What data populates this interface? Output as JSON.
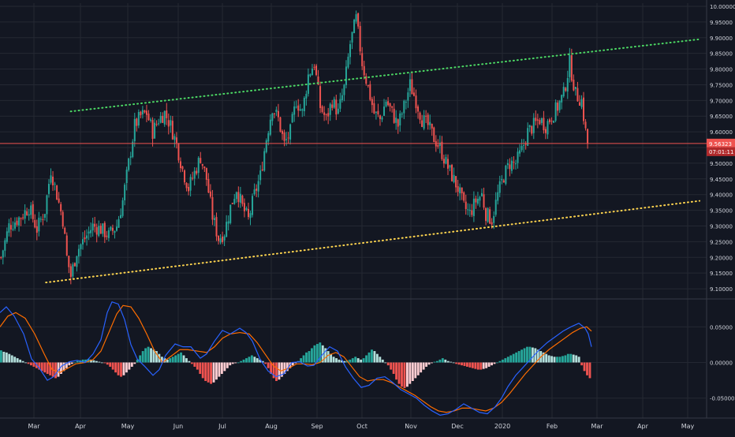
{
  "colors": {
    "background": "#131722",
    "grid": "#242833",
    "axis_text": "#d1d4dc",
    "up": "#26a69a",
    "down": "#ef5350",
    "upper_trendline": "#4cd964",
    "lower_trendline": "#ffd54f",
    "price_line": "#ef5350",
    "macd_line": "#2962ff",
    "signal_line": "#ff6d00",
    "hist_up_strong": "#26a69a",
    "hist_up_weak": "#b2dfdb",
    "hist_down_strong": "#ef5350",
    "hist_down_weak": "#ffcdd2"
  },
  "chart_data": [
    {
      "type": "candlestick",
      "pane": "price",
      "y_ticks": [
        "10.00000",
        "9.95000",
        "9.90000",
        "9.85000",
        "9.80000",
        "9.75000",
        "9.70000",
        "9.65000",
        "9.60000",
        "9.55000",
        "9.50000",
        "9.45000",
        "9.40000",
        "9.35000",
        "9.30000",
        "9.25000",
        "9.20000",
        "9.15000",
        "9.10000"
      ],
      "ylim": [
        9.07,
        10.01
      ],
      "x_month_labels": [
        "Mar",
        "Apr",
        "May",
        "Jun",
        "Jul",
        "Aug",
        "Sep",
        "Oct",
        "Nov",
        "Dec",
        "2020",
        "Feb",
        "Mar",
        "Apr",
        "May"
      ],
      "last_price_label": "9.56323",
      "countdown_label": "07:01:11",
      "last_price": 9.563,
      "anchors_time_price": [
        [
          0,
          9.2
        ],
        [
          4,
          9.3
        ],
        [
          10,
          9.33
        ],
        [
          14,
          9.36
        ],
        [
          18,
          9.29
        ],
        [
          22,
          9.35
        ],
        [
          25,
          9.48
        ],
        [
          28,
          9.4
        ],
        [
          31,
          9.32
        ],
        [
          33,
          9.2
        ],
        [
          35,
          9.14
        ],
        [
          38,
          9.22
        ],
        [
          42,
          9.26
        ],
        [
          46,
          9.3
        ],
        [
          50,
          9.29
        ],
        [
          54,
          9.27
        ],
        [
          58,
          9.3
        ],
        [
          61,
          9.38
        ],
        [
          64,
          9.5
        ],
        [
          67,
          9.62
        ],
        [
          70,
          9.65
        ],
        [
          73,
          9.66
        ],
        [
          76,
          9.6
        ],
        [
          79,
          9.64
        ],
        [
          82,
          9.66
        ],
        [
          85,
          9.62
        ],
        [
          88,
          9.56
        ],
        [
          91,
          9.48
        ],
        [
          94,
          9.42
        ],
        [
          97,
          9.47
        ],
        [
          100,
          9.52
        ],
        [
          103,
          9.45
        ],
        [
          106,
          9.33
        ],
        [
          109,
          9.26
        ],
        [
          112,
          9.28
        ],
        [
          115,
          9.36
        ],
        [
          118,
          9.42
        ],
        [
          121,
          9.36
        ],
        [
          124,
          9.32
        ],
        [
          127,
          9.4
        ],
        [
          130,
          9.46
        ],
        [
          133,
          9.58
        ],
        [
          136,
          9.68
        ],
        [
          139,
          9.64
        ],
        [
          142,
          9.56
        ],
        [
          145,
          9.6
        ],
        [
          148,
          9.7
        ],
        [
          151,
          9.66
        ],
        [
          154,
          9.78
        ],
        [
          157,
          9.82
        ],
        [
          160,
          9.68
        ],
        [
          163,
          9.64
        ],
        [
          166,
          9.7
        ],
        [
          169,
          9.66
        ],
        [
          172,
          9.74
        ],
        [
          175,
          9.88
        ],
        [
          178,
          9.96
        ],
        [
          181,
          9.82
        ],
        [
          184,
          9.74
        ],
        [
          187,
          9.66
        ],
        [
          190,
          9.64
        ],
        [
          193,
          9.7
        ],
        [
          196,
          9.66
        ],
        [
          199,
          9.62
        ],
        [
          202,
          9.68
        ],
        [
          205,
          9.75
        ],
        [
          208,
          9.7
        ],
        [
          211,
          9.64
        ],
        [
          214,
          9.62
        ],
        [
          217,
          9.58
        ],
        [
          220,
          9.55
        ],
        [
          223,
          9.5
        ],
        [
          226,
          9.46
        ],
        [
          229,
          9.42
        ],
        [
          232,
          9.36
        ],
        [
          235,
          9.34
        ],
        [
          238,
          9.38
        ],
        [
          241,
          9.4
        ],
        [
          243,
          9.34
        ],
        [
          246,
          9.32
        ],
        [
          249,
          9.4
        ],
        [
          252,
          9.46
        ],
        [
          255,
          9.5
        ],
        [
          258,
          9.5
        ],
        [
          261,
          9.54
        ],
        [
          264,
          9.6
        ],
        [
          267,
          9.62
        ],
        [
          270,
          9.64
        ],
        [
          273,
          9.62
        ],
        [
          276,
          9.65
        ],
        [
          279,
          9.68
        ],
        [
          282,
          9.72
        ],
        [
          285,
          9.82
        ],
        [
          288,
          9.72
        ],
        [
          291,
          9.7
        ],
        [
          293,
          9.6
        ],
        [
          294,
          9.56
        ]
      ],
      "upper_trendline": [
        [
          9.665,
          0.1
        ],
        [
          9.895,
          0.99
        ]
      ],
      "lower_trendline": [
        [
          9.12,
          0.065
        ],
        [
          9.38,
          0.99
        ]
      ]
    },
    {
      "type": "macd",
      "pane": "indicator",
      "y_ticks": [
        "0.05000",
        "0.00000",
        "-0.05000"
      ],
      "ylim": [
        -0.078,
        0.088
      ],
      "histogram": [
        0.017,
        0.015,
        0.014,
        0.012,
        0.01,
        0.008,
        0.006,
        0.004,
        0.002,
        0,
        -0.002,
        -0.004,
        -0.006,
        -0.008,
        -0.01,
        -0.012,
        -0.014,
        -0.016,
        -0.018,
        -0.02,
        -0.022,
        -0.02,
        -0.016,
        -0.012,
        -0.008,
        -0.004,
        -0.002,
        0,
        0.002,
        0.003,
        0.004,
        0.004,
        0.005,
        0.004,
        0.003,
        0.002,
        0.001,
        0,
        -0.001,
        -0.003,
        -0.006,
        -0.01,
        -0.014,
        -0.018,
        -0.02,
        -0.018,
        -0.014,
        -0.01,
        -0.006,
        -0.002,
        0.004,
        0.01,
        0.016,
        0.02,
        0.022,
        0.02,
        0.018,
        0.016,
        0.012,
        0.008,
        0.006,
        0.004,
        0.006,
        0.008,
        0.01,
        0.012,
        0.014,
        0.01,
        0.006,
        0.002,
        -0.002,
        -0.006,
        -0.01,
        -0.016,
        -0.022,
        -0.026,
        -0.028,
        -0.03,
        -0.028,
        -0.024,
        -0.02,
        -0.016,
        -0.012,
        -0.008,
        -0.004,
        -0.002,
        -0.001,
        0,
        0.002,
        0.004,
        0.006,
        0.008,
        0.01,
        0.008,
        0.006,
        0.004,
        0.002,
        -0.002,
        -0.008,
        -0.016,
        -0.022,
        -0.026,
        -0.024,
        -0.02,
        -0.016,
        -0.012,
        -0.008,
        -0.004,
        -0.001,
        0.002,
        0.006,
        0.01,
        0.014,
        0.016,
        0.02,
        0.024,
        0.026,
        0.028,
        0.024,
        0.02,
        0.016,
        0.012,
        0.008,
        0.006,
        0.004,
        0.003,
        0.002,
        0.003,
        0.004,
        0.006,
        0.008,
        0.006,
        0.004,
        0.006,
        0.01,
        0.014,
        0.018,
        0.016,
        0.012,
        0.008,
        0.004,
        0,
        -0.004,
        -0.01,
        -0.016,
        -0.024,
        -0.03,
        -0.034,
        -0.036,
        -0.034,
        -0.03,
        -0.026,
        -0.022,
        -0.018,
        -0.014,
        -0.01,
        -0.006,
        -0.003,
        -0.001,
        0.001,
        0.002,
        0.004,
        0.006,
        0.004,
        0.002,
        0.001,
        0,
        -0.002,
        -0.003,
        -0.004,
        -0.005,
        -0.006,
        -0.007,
        -0.008,
        -0.009,
        -0.01,
        -0.01,
        -0.009,
        -0.008,
        -0.006,
        -0.004,
        -0.002,
        0,
        0.002,
        0.004,
        0.006,
        0.008,
        0.01,
        0.012,
        0.014,
        0.016,
        0.018,
        0.02,
        0.022,
        0.022,
        0.021,
        0.02,
        0.018,
        0.016,
        0.014,
        0.012,
        0.01,
        0.009,
        0.008,
        0.008,
        0.008,
        0.009,
        0.01,
        0.012,
        0.012,
        0.011,
        0.01,
        0.008,
        -0.004,
        -0.012,
        -0.018,
        -0.022
      ],
      "macd_line": [
        [
          0,
          0.07
        ],
        [
          8,
          0.078
        ],
        [
          18,
          0.065
        ],
        [
          30,
          0.04
        ],
        [
          40,
          0.005
        ],
        [
          50,
          -0.008
        ],
        [
          60,
          -0.025
        ],
        [
          68,
          -0.02
        ],
        [
          78,
          -0.005
        ],
        [
          88,
          0.001
        ],
        [
          98,
          0.003
        ],
        [
          108,
          0.0
        ],
        [
          118,
          0.012
        ],
        [
          128,
          0.032
        ],
        [
          136,
          0.07
        ],
        [
          142,
          0.085
        ],
        [
          150,
          0.082
        ],
        [
          158,
          0.06
        ],
        [
          166,
          0.025
        ],
        [
          174,
          0.005
        ],
        [
          184,
          -0.006
        ],
        [
          194,
          -0.018
        ],
        [
          202,
          -0.01
        ],
        [
          210,
          0.01
        ],
        [
          222,
          0.026
        ],
        [
          232,
          0.022
        ],
        [
          242,
          0.022
        ],
        [
          254,
          0.006
        ],
        [
          262,
          0.012
        ],
        [
          272,
          0.03
        ],
        [
          282,
          0.045
        ],
        [
          292,
          0.04
        ],
        [
          304,
          0.048
        ],
        [
          312,
          0.042
        ],
        [
          320,
          0.03
        ],
        [
          330,
          0.004
        ],
        [
          340,
          -0.012
        ],
        [
          350,
          -0.02
        ],
        [
          360,
          -0.016
        ],
        [
          370,
          0.0
        ],
        [
          380,
          0.001
        ],
        [
          390,
          -0.005
        ],
        [
          398,
          -0.004
        ],
        [
          408,
          0.01
        ],
        [
          418,
          0.022
        ],
        [
          428,
          0.016
        ],
        [
          438,
          -0.006
        ],
        [
          448,
          -0.022
        ],
        [
          458,
          -0.035
        ],
        [
          468,
          -0.032
        ],
        [
          478,
          -0.022
        ],
        [
          488,
          -0.02
        ],
        [
          498,
          -0.028
        ],
        [
          508,
          -0.038
        ],
        [
          518,
          -0.044
        ],
        [
          528,
          -0.05
        ],
        [
          538,
          -0.06
        ],
        [
          548,
          -0.068
        ],
        [
          558,
          -0.074
        ],
        [
          568,
          -0.072
        ],
        [
          578,
          -0.066
        ],
        [
          588,
          -0.058
        ],
        [
          598,
          -0.064
        ],
        [
          608,
          -0.07
        ],
        [
          618,
          -0.072
        ],
        [
          628,
          -0.062
        ],
        [
          636,
          -0.05
        ],
        [
          644,
          -0.034
        ],
        [
          654,
          -0.018
        ],
        [
          664,
          -0.006
        ],
        [
          674,
          0.006
        ],
        [
          684,
          0.018
        ],
        [
          694,
          0.028
        ],
        [
          704,
          0.036
        ],
        [
          714,
          0.044
        ],
        [
          724,
          0.05
        ],
        [
          734,
          0.055
        ],
        [
          742,
          0.048
        ],
        [
          746,
          0.04
        ],
        [
          750,
          0.022
        ]
      ],
      "signal_line": [
        [
          0,
          0.05
        ],
        [
          10,
          0.065
        ],
        [
          20,
          0.07
        ],
        [
          32,
          0.062
        ],
        [
          44,
          0.04
        ],
        [
          56,
          0.012
        ],
        [
          66,
          -0.01
        ],
        [
          76,
          -0.014
        ],
        [
          86,
          -0.008
        ],
        [
          96,
          -0.002
        ],
        [
          108,
          0.0
        ],
        [
          118,
          0.004
        ],
        [
          128,
          0.016
        ],
        [
          138,
          0.042
        ],
        [
          148,
          0.068
        ],
        [
          156,
          0.08
        ],
        [
          166,
          0.078
        ],
        [
          176,
          0.062
        ],
        [
          186,
          0.04
        ],
        [
          196,
          0.016
        ],
        [
          206,
          0.0
        ],
        [
          216,
          0.008
        ],
        [
          228,
          0.018
        ],
        [
          238,
          0.018
        ],
        [
          250,
          0.016
        ],
        [
          262,
          0.014
        ],
        [
          272,
          0.022
        ],
        [
          282,
          0.034
        ],
        [
          292,
          0.04
        ],
        [
          304,
          0.042
        ],
        [
          316,
          0.04
        ],
        [
          326,
          0.028
        ],
        [
          336,
          0.012
        ],
        [
          346,
          -0.004
        ],
        [
          356,
          -0.012
        ],
        [
          366,
          -0.008
        ],
        [
          376,
          -0.002
        ],
        [
          386,
          -0.002
        ],
        [
          396,
          -0.003
        ],
        [
          406,
          0.0
        ],
        [
          416,
          0.01
        ],
        [
          426,
          0.014
        ],
        [
          436,
          0.008
        ],
        [
          446,
          -0.006
        ],
        [
          456,
          -0.02
        ],
        [
          466,
          -0.026
        ],
        [
          476,
          -0.024
        ],
        [
          486,
          -0.024
        ],
        [
          496,
          -0.028
        ],
        [
          506,
          -0.034
        ],
        [
          516,
          -0.04
        ],
        [
          526,
          -0.046
        ],
        [
          536,
          -0.054
        ],
        [
          546,
          -0.062
        ],
        [
          556,
          -0.068
        ],
        [
          566,
          -0.07
        ],
        [
          576,
          -0.068
        ],
        [
          586,
          -0.064
        ],
        [
          596,
          -0.064
        ],
        [
          606,
          -0.066
        ],
        [
          616,
          -0.068
        ],
        [
          626,
          -0.064
        ],
        [
          636,
          -0.056
        ],
        [
          646,
          -0.044
        ],
        [
          656,
          -0.03
        ],
        [
          666,
          -0.016
        ],
        [
          676,
          -0.004
        ],
        [
          686,
          0.008
        ],
        [
          696,
          0.018
        ],
        [
          706,
          0.026
        ],
        [
          716,
          0.034
        ],
        [
          726,
          0.042
        ],
        [
          736,
          0.048
        ],
        [
          744,
          0.05
        ],
        [
          750,
          0.044
        ]
      ]
    }
  ]
}
